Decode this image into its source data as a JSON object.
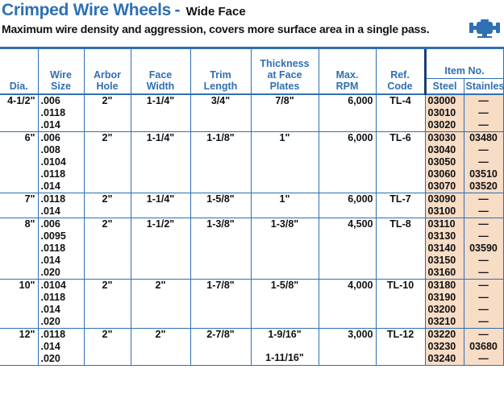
{
  "header": {
    "title": "Crimped Wire Wheels",
    "title_separator": "-",
    "subtitle_face": "Wide Face",
    "description": "Maximum wire density and aggression, covers more surface area in a single pass.",
    "icon": "bench-grinder-icon"
  },
  "colors": {
    "accent_blue": "#2f6fb3",
    "dark_blue": "#1c3f73",
    "item_background": "#f7dcc6"
  },
  "table": {
    "headers": {
      "dia": "Dia.",
      "wire_size": [
        "Wire",
        "Size"
      ],
      "arbor_hole": [
        "Arbor",
        "Hole"
      ],
      "face_width": [
        "Face",
        "Width"
      ],
      "trim_length": [
        "Trim",
        "Length"
      ],
      "thickness": [
        "Thickness",
        "at Face",
        "Plates"
      ],
      "max_rpm": [
        "Max.",
        "RPM"
      ],
      "ref_code": [
        "Ref.",
        "Code"
      ],
      "item_no": "Item No.",
      "steel": "Steel",
      "stainless": "Stainless"
    },
    "rows": [
      {
        "dia": "4-1/2\"",
        "wire": [
          ".006",
          ".0118",
          ".014"
        ],
        "arbor": "2\"",
        "face": "1-1/4\"",
        "trim": "3/4\"",
        "thickness": [
          "7/8\""
        ],
        "rpm": "6,000",
        "ref": "TL-4",
        "steel": [
          "03000",
          "03010",
          "03020"
        ],
        "stainless": [
          "—",
          "—",
          "—"
        ]
      },
      {
        "dia": "6\"",
        "wire": [
          ".006",
          ".008",
          ".0104",
          ".0118",
          ".014"
        ],
        "arbor": "2\"",
        "face": "1-1/4\"",
        "trim": "1-1/8\"",
        "thickness": [
          "1\""
        ],
        "rpm": "6,000",
        "ref": "TL-6",
        "steel": [
          "03030",
          "03040",
          "03050",
          "03060",
          "03070"
        ],
        "stainless": [
          "03480",
          "—",
          "—",
          "03510",
          "03520"
        ]
      },
      {
        "dia": "7\"",
        "wire": [
          ".0118",
          ".014"
        ],
        "arbor": "2\"",
        "face": "1-1/4\"",
        "trim": "1-5/8\"",
        "thickness": [
          "1\""
        ],
        "rpm": "6,000",
        "ref": "TL-7",
        "steel": [
          "03090",
          "03100"
        ],
        "stainless": [
          "—",
          "—"
        ]
      },
      {
        "dia": "8\"",
        "wire": [
          ".006",
          ".0095",
          ".0118",
          ".014",
          ".020"
        ],
        "arbor": "2\"",
        "face": "1-1/2\"",
        "trim": "1-3/8\"",
        "thickness": [
          "1-3/8\""
        ],
        "rpm": "4,500",
        "ref": "TL-8",
        "steel": [
          "03110",
          "03130",
          "03140",
          "03150",
          "03160"
        ],
        "stainless": [
          "—",
          "—",
          "03590",
          "—",
          "—"
        ]
      },
      {
        "dia": "10\"",
        "wire": [
          ".0104",
          ".0118",
          ".014",
          ".020"
        ],
        "arbor": "2\"",
        "face": "2\"",
        "trim": "1-7/8\"",
        "thickness": [
          "1-5/8\""
        ],
        "rpm": "4,000",
        "ref": "TL-10",
        "steel": [
          "03180",
          "03190",
          "03200",
          "03210"
        ],
        "stainless": [
          "—",
          "—",
          "—",
          "—"
        ]
      },
      {
        "dia": "12\"",
        "wire": [
          ".0118",
          ".014",
          ".020"
        ],
        "arbor": "2\"",
        "face": "2\"",
        "trim": "2-7/8\"",
        "thickness": [
          "1-9/16\"",
          "1-11/16\""
        ],
        "rpm": "3,000",
        "ref": "TL-12",
        "steel": [
          "03220",
          "03230",
          "03240"
        ],
        "stainless": [
          "—",
          "03680",
          "—"
        ]
      }
    ]
  }
}
